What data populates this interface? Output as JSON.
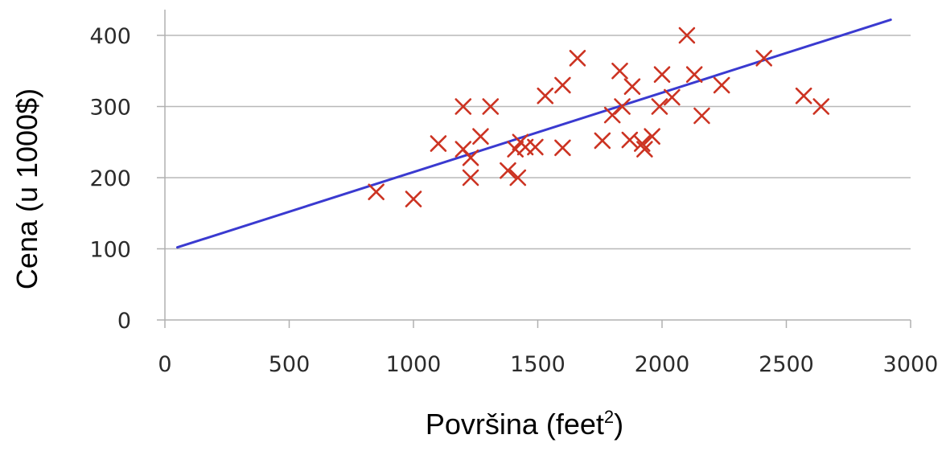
{
  "chart_data": {
    "type": "scatter",
    "title": "",
    "xlabel": "Površina (feet",
    "xlabel_sup": "2",
    "xlabel_suffix": ")",
    "ylabel": "Cena (u 1000$)",
    "xlim": [
      0,
      3000
    ],
    "ylim": [
      0,
      400
    ],
    "xticks": [
      0,
      500,
      1000,
      1500,
      2000,
      2500,
      3000
    ],
    "yticks": [
      0,
      100,
      200,
      300,
      400
    ],
    "grid": "horizontal",
    "colors": {
      "points": "#cc3322",
      "line": "#3a3ad0",
      "grid": "#b8b8b8"
    },
    "series": [
      {
        "kind": "scatter",
        "marker": "x",
        "x": [
          850,
          1000,
          1100,
          1200,
          1200,
          1230,
          1230,
          1270,
          1310,
          1380,
          1410,
          1420,
          1430,
          1450,
          1490,
          1530,
          1600,
          1600,
          1660,
          1760,
          1800,
          1830,
          1840,
          1870,
          1880,
          1920,
          1930,
          1960,
          1990,
          2000,
          2040,
          2100,
          2130,
          2160,
          2240,
          2410,
          2570,
          2640
        ],
        "y": [
          180,
          170,
          248,
          240,
          300,
          228,
          200,
          258,
          300,
          210,
          240,
          200,
          250,
          243,
          243,
          315,
          242,
          330,
          368,
          252,
          288,
          350,
          300,
          253,
          328,
          248,
          240,
          258,
          300,
          345,
          313,
          400,
          345,
          287,
          330,
          368,
          315,
          300
        ]
      },
      {
        "kind": "line",
        "x": [
          50,
          2920
        ],
        "y": [
          102,
          422
        ]
      }
    ]
  }
}
